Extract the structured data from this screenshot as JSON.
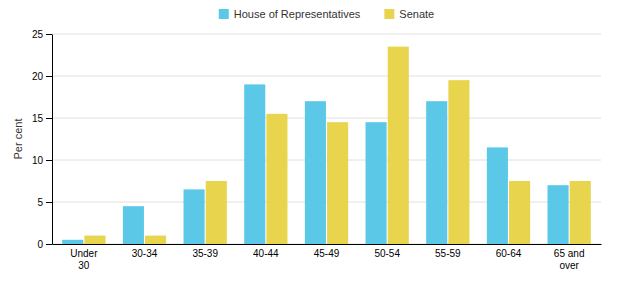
{
  "chart_data": {
    "type": "bar",
    "categories": [
      "Under\n30",
      "30-34",
      "35-39",
      "40-44",
      "45-49",
      "50-54",
      "55-59",
      "60-64",
      "65 and\nover"
    ],
    "series": [
      {
        "name": "House of Representatives",
        "color": "#5BC8E8",
        "values": [
          0.5,
          4.5,
          6.5,
          19.0,
          17.0,
          14.5,
          17.0,
          11.5,
          7.0
        ]
      },
      {
        "name": "Senate",
        "color": "#E8D44D",
        "values": [
          1.0,
          1.0,
          7.5,
          15.5,
          14.5,
          23.5,
          19.5,
          7.5,
          7.5
        ]
      }
    ],
    "ylabel": "Per cent",
    "ylim": [
      0,
      25
    ],
    "yticks": [
      0,
      5,
      10,
      15,
      20,
      25
    ],
    "grid": true,
    "legend": "top"
  }
}
